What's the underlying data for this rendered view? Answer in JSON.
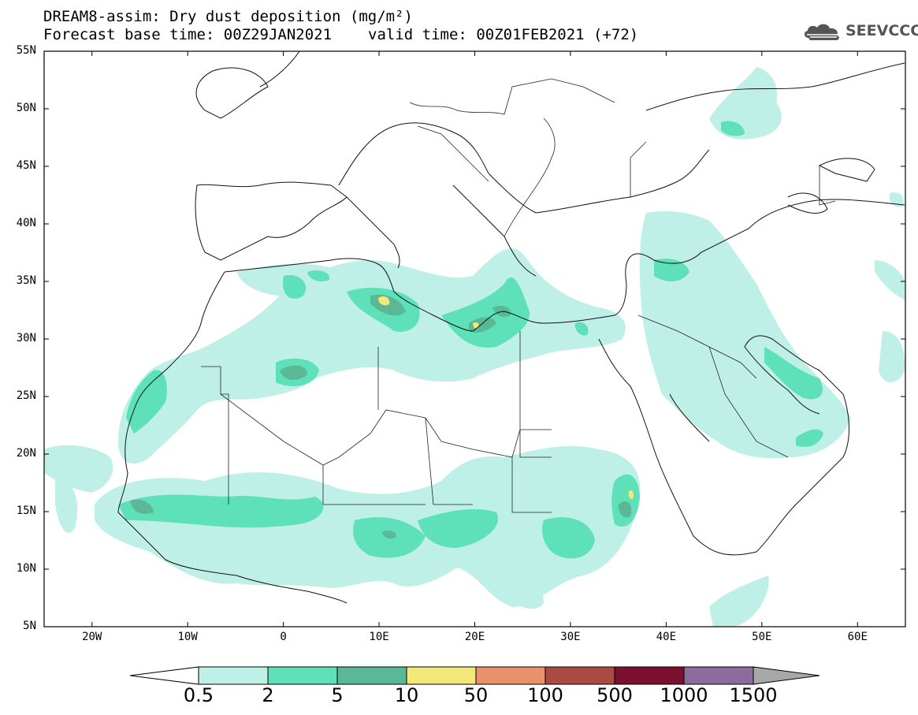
{
  "title": {
    "line1": "DREAM8-assim: Dry dust deposition (mg/m²)",
    "base_time": "Forecast base time: 00Z29JAN2021",
    "valid_time": "valid time: 00Z01FEB2021 (+72)"
  },
  "logo": {
    "text": "SEEVCCC",
    "icon": "cloud-icon"
  },
  "latitude_labels": [
    "55N",
    "50N",
    "45N",
    "40N",
    "35N",
    "30N",
    "25N",
    "20N",
    "15N",
    "10N",
    "5N"
  ],
  "longitude_labels": [
    "20W",
    "10W",
    "0",
    "10E",
    "20E",
    "30E",
    "40E",
    "50E",
    "60E"
  ],
  "extent": {
    "lon": [
      -25,
      65
    ],
    "lat": [
      5,
      55
    ]
  },
  "colorbar": {
    "labels": [
      "0.5",
      "2",
      "5",
      "10",
      "50",
      "100",
      "500",
      "1000",
      "1500"
    ],
    "colors": [
      "#bff0e8",
      "#5ee0b8",
      "#5bb896",
      "#f5e87a",
      "#e8916c",
      "#a94b43",
      "#7a0f2e",
      "#8e6b9e",
      "#a8a8a8"
    ]
  }
}
